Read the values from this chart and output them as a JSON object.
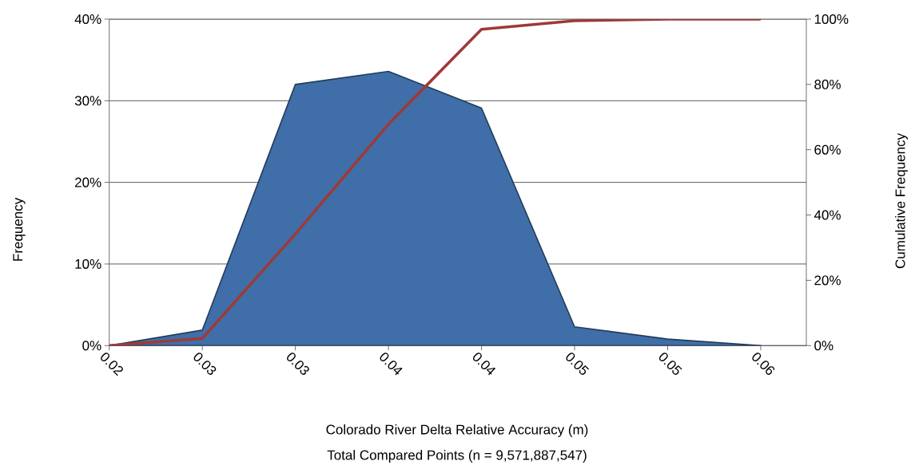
{
  "chart_data": {
    "type": "area",
    "xlabel": "Colorado River Delta Relative Accuracy (m)",
    "annotations": [
      "Total Compared Points (n = 9,571,887,547)"
    ],
    "ylabel": "Frequency",
    "y2label": "Cumulative Frequency",
    "categories": [
      "0.02",
      "0.03",
      "0.03",
      "0.04",
      "0.04",
      "0.05",
      "0.05",
      "0.06"
    ],
    "series": [
      {
        "color": "#3f6ea8",
        "values": [
          0,
          1.9,
          32.0,
          33.6,
          29.1,
          2.3,
          0.8,
          0
        ]
      },
      {
        "type": "line",
        "axis": "y2",
        "color": "#9e3a38",
        "values": [
          0,
          2.2,
          34.2,
          67.8,
          96.9,
          99.5,
          100,
          100
        ]
      }
    ],
    "ylim": [
      0,
      40
    ],
    "yticks": [
      {
        "value": 0,
        "label": "0%"
      },
      {
        "value": 10,
        "label": "10%"
      },
      {
        "value": 20,
        "label": "20%"
      },
      {
        "value": 30,
        "label": "30%"
      },
      {
        "value": 40,
        "label": "40%"
      }
    ],
    "y2lim": [
      0,
      100
    ],
    "y2ticks": [
      {
        "value": 0,
        "label": "0%"
      },
      {
        "value": 20,
        "label": "20%"
      },
      {
        "value": 40,
        "label": "40%"
      },
      {
        "value": 60,
        "label": "60%"
      },
      {
        "value": 80,
        "label": "80%"
      },
      {
        "value": 100,
        "label": "100%"
      }
    ],
    "grid": "y",
    "legend": false,
    "marker": "none",
    "line_style": "solid"
  }
}
